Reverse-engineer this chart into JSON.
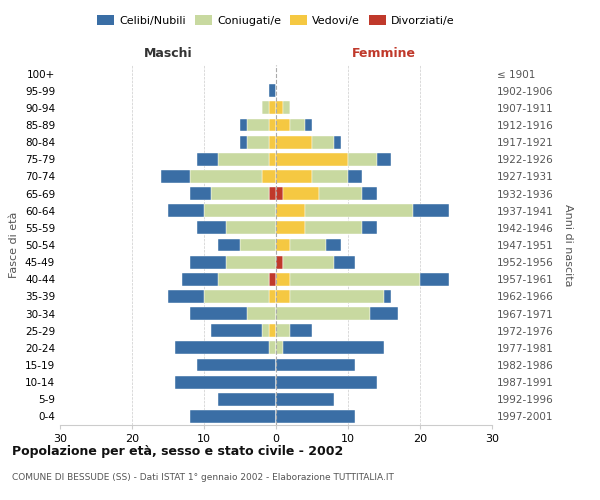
{
  "age_groups": [
    "0-4",
    "5-9",
    "10-14",
    "15-19",
    "20-24",
    "25-29",
    "30-34",
    "35-39",
    "40-44",
    "45-49",
    "50-54",
    "55-59",
    "60-64",
    "65-69",
    "70-74",
    "75-79",
    "80-84",
    "85-89",
    "90-94",
    "95-99",
    "100+"
  ],
  "birth_years": [
    "1997-2001",
    "1992-1996",
    "1987-1991",
    "1982-1986",
    "1977-1981",
    "1972-1976",
    "1967-1971",
    "1962-1966",
    "1957-1961",
    "1952-1956",
    "1947-1951",
    "1942-1946",
    "1937-1941",
    "1932-1936",
    "1927-1931",
    "1922-1926",
    "1917-1921",
    "1912-1916",
    "1907-1911",
    "1902-1906",
    "≤ 1901"
  ],
  "males": {
    "celibi": [
      12,
      8,
      14,
      11,
      13,
      7,
      8,
      5,
      5,
      5,
      3,
      4,
      5,
      3,
      4,
      3,
      1,
      1,
      0,
      1,
      0
    ],
    "coniugati": [
      0,
      0,
      0,
      0,
      1,
      1,
      4,
      9,
      7,
      7,
      5,
      7,
      10,
      8,
      10,
      7,
      3,
      3,
      1,
      0,
      0
    ],
    "vedovi": [
      0,
      0,
      0,
      0,
      0,
      1,
      0,
      1,
      0,
      0,
      0,
      0,
      0,
      0,
      2,
      1,
      1,
      1,
      1,
      0,
      0
    ],
    "divorziati": [
      0,
      0,
      0,
      0,
      0,
      0,
      0,
      0,
      1,
      0,
      0,
      0,
      0,
      1,
      0,
      0,
      0,
      0,
      0,
      0,
      0
    ]
  },
  "females": {
    "nubili": [
      11,
      8,
      14,
      11,
      14,
      3,
      4,
      1,
      4,
      3,
      2,
      2,
      5,
      2,
      2,
      2,
      1,
      1,
      0,
      0,
      0
    ],
    "coniugate": [
      0,
      0,
      0,
      0,
      1,
      2,
      13,
      13,
      18,
      7,
      5,
      8,
      15,
      6,
      5,
      4,
      3,
      2,
      1,
      0,
      0
    ],
    "vedove": [
      0,
      0,
      0,
      0,
      0,
      0,
      0,
      2,
      2,
      0,
      2,
      4,
      4,
      5,
      5,
      10,
      5,
      2,
      1,
      0,
      0
    ],
    "divorziate": [
      0,
      0,
      0,
      0,
      0,
      0,
      0,
      0,
      0,
      1,
      0,
      0,
      0,
      1,
      0,
      0,
      0,
      0,
      0,
      0,
      0
    ]
  },
  "colors": {
    "celibi": "#3A6EA5",
    "coniugati": "#C8D9A0",
    "vedovi": "#F5C842",
    "divorziati": "#C0392B"
  },
  "title": "Popolazione per età, sesso e stato civile - 2002",
  "subtitle": "COMUNE DI BESSUDE (SS) - Dati ISTAT 1° gennaio 2002 - Elaborazione TUTTITALIA.IT",
  "xlabel_left": "Maschi",
  "xlabel_right": "Femmine",
  "ylabel_left": "Fasce di età",
  "ylabel_right": "Anni di nascita",
  "xlim": 30,
  "bg_color": "#ffffff",
  "grid_color": "#cccccc",
  "legend_labels": [
    "Celibi/Nubili",
    "Coniugati/e",
    "Vedovi/e",
    "Divorziati/e"
  ]
}
